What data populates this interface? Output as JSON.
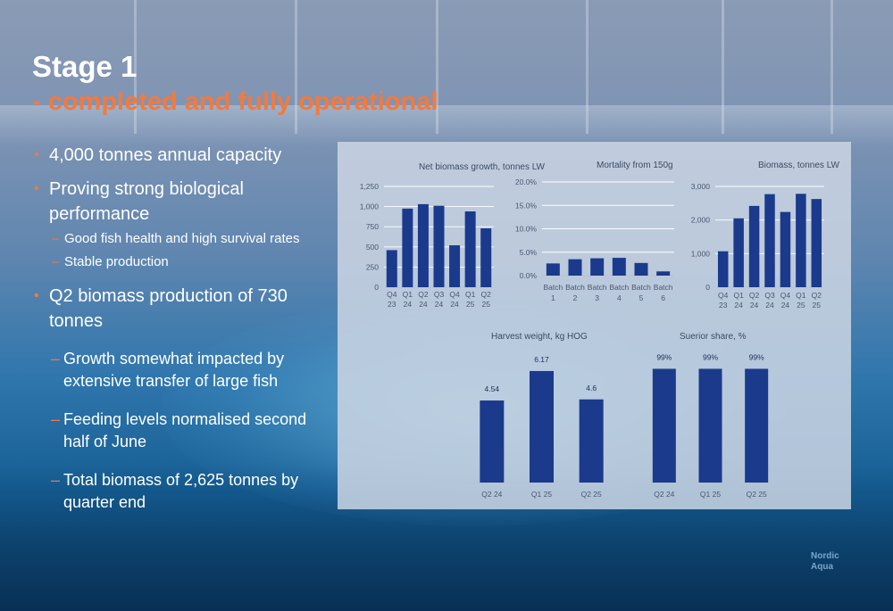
{
  "title": "Stage 1",
  "subtitle": "- completed and fully operational",
  "bullets": [
    {
      "level": 1,
      "text": "4,000 tonnes annual capacity"
    },
    {
      "level": 1,
      "text": "Proving strong biological performance"
    },
    {
      "level": 2,
      "text": "Good fish health and high survival rates"
    },
    {
      "level": 2,
      "text": "Stable production"
    },
    {
      "level": 1,
      "text": "Q2 biomass production of 730 tonnes"
    },
    {
      "level": 3,
      "text": "Growth somewhat impacted by extensive transfer of large fish"
    },
    {
      "level": 3,
      "text": "Feeding levels normalised second half of June"
    },
    {
      "level": 3,
      "text": "Total biomass of 2,625 tonnes by quarter end"
    }
  ],
  "logo": {
    "line1": "Nordic",
    "line2": "Aqua"
  },
  "colors": {
    "bar": "#1b3a8c",
    "accent": "#f27a3f",
    "title": "#ffffff"
  },
  "chart_data": [
    {
      "type": "bar",
      "title": "Net biomass growth, tonnes LW",
      "categories": [
        [
          "Q4",
          "23"
        ],
        [
          "Q1",
          "24"
        ],
        [
          "Q2",
          "24"
        ],
        [
          "Q3",
          "24"
        ],
        [
          "Q4",
          "24"
        ],
        [
          "Q1",
          "25"
        ],
        [
          "Q2",
          "25"
        ]
      ],
      "values": [
        460,
        975,
        1030,
        1010,
        520,
        940,
        730
      ],
      "ylim": [
        0,
        1250
      ],
      "yticks": [
        0,
        250,
        500,
        750,
        1000,
        1250
      ],
      "ytick_labels": [
        "0",
        "250",
        "500",
        "750",
        "1,000",
        "1,250"
      ],
      "grid": true
    },
    {
      "type": "bar",
      "title": "Mortality from 150g",
      "categories": [
        [
          "Batch",
          "1"
        ],
        [
          "Batch",
          "2"
        ],
        [
          "Batch",
          "3"
        ],
        [
          "Batch",
          "4"
        ],
        [
          "Batch",
          "5"
        ],
        [
          "Batch",
          "6"
        ]
      ],
      "values": [
        2.6,
        3.5,
        3.7,
        3.8,
        2.7,
        0.9
      ],
      "ylim": [
        0,
        20
      ],
      "yticks": [
        0,
        5,
        10,
        15,
        20
      ],
      "ytick_labels": [
        "0.0%",
        "5.0%",
        "10.0%",
        "15.0%",
        "20.0%"
      ],
      "grid": true
    },
    {
      "type": "bar",
      "title": "Biomass, tonnes LW",
      "categories": [
        [
          "Q4",
          "23"
        ],
        [
          "Q1",
          "24"
        ],
        [
          "Q2",
          "24"
        ],
        [
          "Q3",
          "24"
        ],
        [
          "Q4",
          "24"
        ],
        [
          "Q1",
          "25"
        ],
        [
          "Q2",
          "25"
        ]
      ],
      "values": [
        1070,
        2050,
        2420,
        2770,
        2240,
        2780,
        2625
      ],
      "ylim": [
        0,
        3000
      ],
      "yticks": [
        0,
        1000,
        2000,
        3000
      ],
      "ytick_labels": [
        "0",
        "1,000",
        "2,000",
        "3,000"
      ],
      "grid": true
    },
    {
      "type": "bar",
      "title": "Harvest weight, kg HOG",
      "categories": [
        [
          "Q2 24"
        ],
        [
          "Q1 25"
        ],
        [
          "Q2 25"
        ]
      ],
      "values": [
        4.54,
        6.17,
        4.6
      ],
      "data_labels": [
        "4.54",
        "6.17",
        "4.6"
      ],
      "ylim": [
        0,
        7.5
      ],
      "grid": false
    },
    {
      "type": "bar",
      "title": "Suerior share, %",
      "categories": [
        [
          "Q2 24"
        ],
        [
          "Q1 25"
        ],
        [
          "Q2 25"
        ]
      ],
      "values": [
        99,
        99,
        99
      ],
      "data_labels": [
        "99%",
        "99%",
        "99%"
      ],
      "ylim": [
        0,
        118
      ],
      "grid": false
    }
  ]
}
